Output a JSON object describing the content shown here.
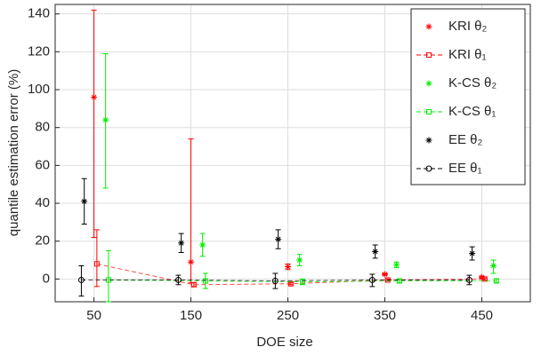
{
  "chart_data": {
    "type": "errorbar",
    "x_label": "DOE size",
    "y_label": "quantile estimation error (%)",
    "xlim": [
      10,
      500
    ],
    "ylim": [
      -12,
      145
    ],
    "xticks": [
      50,
      150,
      250,
      350,
      450
    ],
    "yticks": [
      0,
      20,
      40,
      60,
      80,
      100,
      120,
      140
    ],
    "grid": true,
    "legend": "upper right",
    "series": [
      {
        "name": "KRI θ₂",
        "color": "#ff0000",
        "marker": "asterisk",
        "line": "none",
        "x": [
          50,
          150,
          250,
          350,
          450
        ],
        "values": [
          96,
          9,
          6.5,
          2.5,
          1
        ],
        "lower": [
          22,
          -2,
          5,
          2,
          0.5
        ],
        "upper": [
          142,
          74,
          8,
          3,
          1.5
        ]
      },
      {
        "name": "KRI θ₁",
        "color": "#ff0000",
        "marker": "square",
        "line": "dashed",
        "x": [
          53,
          153,
          253,
          353,
          453
        ],
        "values": [
          8,
          -3,
          -2.5,
          -0.5,
          0
        ],
        "lower": [
          -4,
          -4,
          -3,
          -1,
          -0.5
        ],
        "upper": [
          26,
          -2,
          -2,
          0,
          0.5
        ]
      },
      {
        "name": "K-CS θ₂",
        "color": "#00ee00",
        "marker": "asterisk",
        "line": "none",
        "x": [
          62,
          162,
          262,
          362,
          462
        ],
        "values": [
          84,
          18,
          10,
          7.5,
          7
        ],
        "lower": [
          48,
          12,
          7,
          6,
          3
        ],
        "upper": [
          119,
          24,
          13,
          9,
          10
        ]
      },
      {
        "name": "K-CS θ₁",
        "color": "#00ee00",
        "marker": "square",
        "line": "dashed",
        "x": [
          65,
          165,
          265,
          365,
          465
        ],
        "values": [
          -0.5,
          -1,
          -1.5,
          -1,
          -1
        ],
        "lower": [
          -12,
          -5,
          -3,
          -2,
          -2
        ],
        "upper": [
          15,
          3,
          0,
          0,
          0
        ]
      },
      {
        "name": "EE θ₂",
        "color": "#000000",
        "marker": "asterisk",
        "line": "none",
        "x": [
          40,
          140,
          240,
          340,
          440
        ],
        "values": [
          41,
          19,
          21,
          14.5,
          13.5
        ],
        "lower": [
          29,
          14,
          16,
          11,
          10
        ],
        "upper": [
          53,
          24,
          26,
          18,
          17
        ]
      },
      {
        "name": "EE θ₁",
        "color": "#000000",
        "marker": "circle",
        "line": "dashed",
        "x": [
          37,
          137,
          237,
          337,
          437
        ],
        "values": [
          -0.5,
          -0.5,
          -1,
          -0.5,
          -0.5
        ],
        "lower": [
          -9,
          -3,
          -5,
          -4,
          -3
        ],
        "upper": [
          7,
          2,
          3,
          2.5,
          2
        ]
      }
    ]
  }
}
